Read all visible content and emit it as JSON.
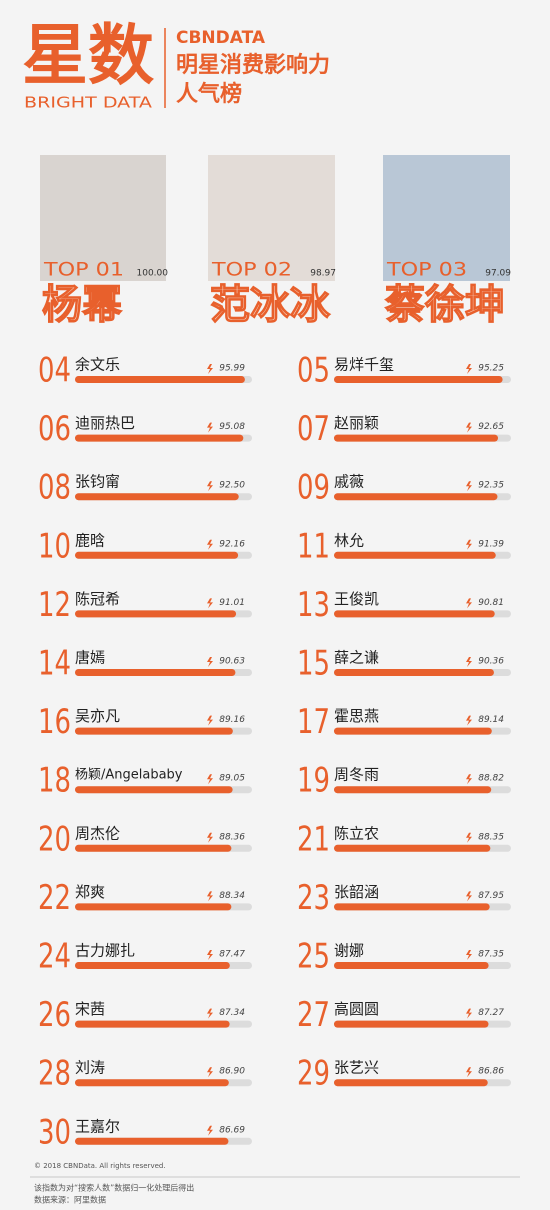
{
  "header": {
    "logo": "星数",
    "logo_sub": "BRIGHT DATA",
    "brand": "CBNDATA",
    "title_line1": "明星消费影响力",
    "title_line2": "人气榜"
  },
  "top3": [
    {
      "label": "TOP 01",
      "name": "杨幂",
      "score": 100,
      "score_label": "100.00"
    },
    {
      "label": "TOP 02",
      "name": "范冰冰",
      "score": 98.97
    },
    {
      "label": "TOP 03",
      "name": "蔡徐坤",
      "score": 97.09
    }
  ],
  "items": [
    {
      "rank": "04",
      "name": "余文乐",
      "score": 95.99
    },
    {
      "rank": "05",
      "name": "易烊千玺",
      "score": 95.25
    },
    {
      "rank": "06",
      "name": "迪丽热巴",
      "score": 95.08
    },
    {
      "rank": "07",
      "name": "赵丽颖",
      "score": 92.65
    },
    {
      "rank": "08",
      "name": "张钧甯",
      "score": 92.5,
      "score_label": "92.50"
    },
    {
      "rank": "09",
      "name": "戚薇",
      "score": 92.35
    },
    {
      "rank": "10",
      "name": "鹿晗",
      "score": 92.16
    },
    {
      "rank": "11",
      "name": "林允",
      "score": 91.39
    },
    {
      "rank": "12",
      "name": "陈冠希",
      "score": 91.01
    },
    {
      "rank": "13",
      "name": "王俊凯",
      "score": 90.81
    },
    {
      "rank": "14",
      "name": "唐嫣",
      "score": 90.63
    },
    {
      "rank": "15",
      "name": "薛之谦",
      "score": 90.36
    },
    {
      "rank": "16",
      "name": "吴亦凡",
      "score": 89.16
    },
    {
      "rank": "17",
      "name": "霍思燕",
      "score": 89.14
    },
    {
      "rank": "18",
      "name": "杨颖/Angelababy",
      "score": 89.05
    },
    {
      "rank": "19",
      "name": "周冬雨",
      "score": 88.82
    },
    {
      "rank": "20",
      "name": "周杰伦",
      "score": 88.36
    },
    {
      "rank": "21",
      "name": "陈立农",
      "score": 88.35
    },
    {
      "rank": "22",
      "name": "郑爽",
      "score": 88.34
    },
    {
      "rank": "23",
      "name": "张韶涵",
      "score": 87.95
    },
    {
      "rank": "24",
      "name": "古力娜扎",
      "score": 87.47
    },
    {
      "rank": "25",
      "name": "谢娜",
      "score": 87.35
    },
    {
      "rank": "26",
      "name": "宋茜",
      "score": 87.34
    },
    {
      "rank": "27",
      "name": "高圆圆",
      "score": 87.27
    },
    {
      "rank": "28",
      "name": "刘涛",
      "score": 86.9,
      "score_label": "86.90"
    },
    {
      "rank": "29",
      "name": "张艺兴",
      "score": 86.86
    },
    {
      "rank": "30",
      "name": "王嘉尔",
      "score": 86.69
    }
  ],
  "footer": {
    "copyright": "© 2018 CBNData. All rights reserved.",
    "note": "该指数为对“搜索人数”数据归一化处理后得出",
    "source": "数据来源：阿里数据"
  }
}
